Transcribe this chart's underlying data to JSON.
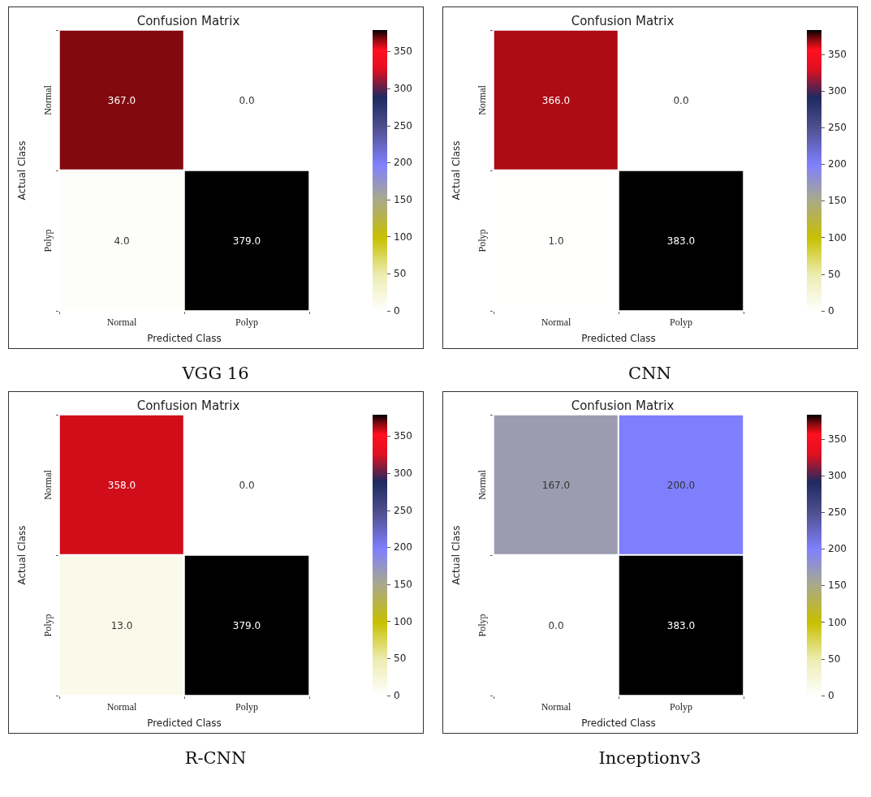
{
  "chart_data": [
    {
      "type": "heatmap",
      "title": "Confusion Matrix",
      "xlabel": "Predicted Class",
      "ylabel": "Actual Class",
      "categories": [
        "Normal",
        "Polyp"
      ],
      "y_categories": [
        "Normal",
        "Polyp"
      ],
      "cells": [
        [
          367,
          0
        ],
        [
          4,
          379
        ]
      ],
      "cell_labels": [
        [
          "367.0",
          "0.0"
        ],
        [
          "4.0",
          "379.0"
        ]
      ],
      "clim": [
        0,
        379
      ],
      "cticks": [
        0,
        50,
        100,
        150,
        200,
        250,
        300,
        350
      ],
      "annotations": [
        "VGG 16"
      ]
    },
    {
      "type": "heatmap",
      "title": "Confusion Matrix",
      "xlabel": "Predicted Class",
      "ylabel": "Actual Class",
      "categories": [
        "Normal",
        "Polyp"
      ],
      "y_categories": [
        "Normal",
        "Polyp"
      ],
      "cells": [
        [
          366,
          0
        ],
        [
          1,
          383
        ]
      ],
      "cell_labels": [
        [
          "366.0",
          "0.0"
        ],
        [
          "1.0",
          "383.0"
        ]
      ],
      "clim": [
        0,
        383
      ],
      "cticks": [
        0,
        50,
        100,
        150,
        200,
        250,
        300,
        350
      ],
      "annotations": [
        "CNN"
      ]
    },
    {
      "type": "heatmap",
      "title": "Confusion Matrix",
      "xlabel": "Predicted Class",
      "ylabel": "Actual Class",
      "categories": [
        "Normal",
        "Polyp"
      ],
      "y_categories": [
        "Normal",
        "Polyp"
      ],
      "cells": [
        [
          358,
          0
        ],
        [
          13,
          379
        ]
      ],
      "cell_labels": [
        [
          "358.0",
          "0.0"
        ],
        [
          "13.0",
          "379.0"
        ]
      ],
      "clim": [
        0,
        379
      ],
      "cticks": [
        0,
        50,
        100,
        150,
        200,
        250,
        300,
        350
      ],
      "annotations": [
        "R-CNN"
      ]
    },
    {
      "type": "heatmap",
      "title": "Confusion Matrix",
      "xlabel": "Predicted Class",
      "ylabel": "Actual Class",
      "categories": [
        "Normal",
        "Polyp"
      ],
      "y_categories": [
        "Normal",
        "Polyp"
      ],
      "cells": [
        [
          167,
          200
        ],
        [
          0,
          383
        ]
      ],
      "cell_labels": [
        [
          "167.0",
          "200.0"
        ],
        [
          "0.0",
          "383.0"
        ]
      ],
      "clim": [
        0,
        383
      ],
      "cticks": [
        0,
        50,
        100,
        150,
        200,
        250,
        300,
        350
      ],
      "annotations": [
        "Inceptionv3"
      ]
    }
  ]
}
